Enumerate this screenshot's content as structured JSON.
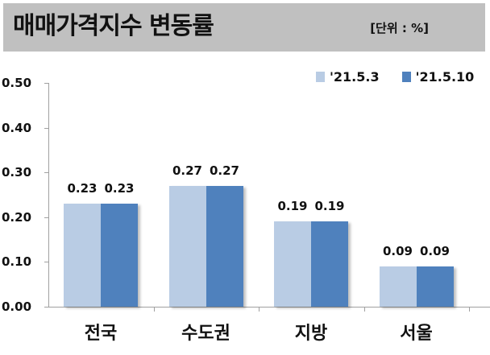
{
  "header": {
    "title": "매매가격지수 변동률",
    "unit": "[단위 : %]"
  },
  "legend": [
    {
      "label": "'21.5.3",
      "color": "#b9cce4"
    },
    {
      "label": "'21.5.10",
      "color": "#4f81bd"
    }
  ],
  "axis": {
    "ticks": [
      "0.00",
      "0.10",
      "0.20",
      "0.30",
      "0.40",
      "0.50"
    ]
  },
  "categories": [
    "전국",
    "수도권",
    "지방",
    "서울"
  ],
  "chart_data": {
    "type": "bar",
    "title": "매매가격지수 변동률",
    "subtitle": "[단위 : %]",
    "xlabel": "",
    "ylabel": "",
    "categories": [
      "전국",
      "수도권",
      "지방",
      "서울"
    ],
    "series": [
      {
        "name": "'21.5.3",
        "values": [
          0.23,
          0.27,
          0.19,
          0.09
        ],
        "color": "#b9cce4"
      },
      {
        "name": "'21.5.10",
        "values": [
          0.23,
          0.27,
          0.19,
          0.09
        ],
        "color": "#4f81bd"
      }
    ],
    "ylim": [
      0.0,
      0.5
    ],
    "yticks": [
      0.0,
      0.1,
      0.2,
      0.3,
      0.4,
      0.5
    ],
    "grid": false,
    "legend_position": "top-right",
    "data_labels": [
      [
        "0.23",
        "0.23"
      ],
      [
        "0.27",
        "0.27"
      ],
      [
        "0.19",
        "0.19"
      ],
      [
        "0.09",
        "0.09"
      ]
    ]
  }
}
